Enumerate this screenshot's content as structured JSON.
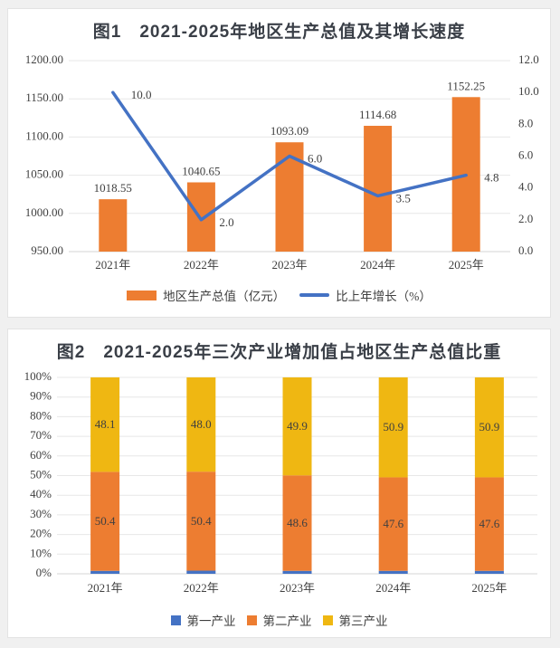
{
  "page": {
    "background": "#f0f0f0",
    "card_background": "#ffffff",
    "card_border": "#e3e3e3"
  },
  "colors": {
    "bar_orange": "#ED7D31",
    "line_blue": "#4472C4",
    "gold": "#EFB712",
    "axis_text": "#404040",
    "title_text": "#3a3f47",
    "grid": "#e7e7e7",
    "axis_line": "#d5d5d5"
  },
  "chart_data": [
    {
      "type": "combo-bar-line",
      "title": "图1　2021-2025年地区生产总值及其增长速度",
      "categories": [
        "2021年",
        "2022年",
        "2023年",
        "2024年",
        "2025年"
      ],
      "series": [
        {
          "name": "地区生产总值（亿元）",
          "chart_type": "bar",
          "axis": "left",
          "color": "#ED7D31",
          "values": [
            1018.55,
            1040.65,
            1093.09,
            1114.68,
            1152.25
          ],
          "labels": [
            "1018.55",
            "1040.65",
            "1093.09",
            "1114.68",
            "1152.25"
          ]
        },
        {
          "name": "比上年增长（%）",
          "chart_type": "line",
          "axis": "right",
          "color": "#4472C4",
          "values": [
            10.0,
            2.0,
            6.0,
            3.5,
            4.8
          ],
          "labels": [
            "10.0",
            "2.0",
            "6.0",
            "3.5",
            "4.8"
          ]
        }
      ],
      "left_axis": {
        "min": 950,
        "max": 1200,
        "ticks": [
          "950.00",
          "1000.00",
          "1050.00",
          "1100.00",
          "1150.00",
          "1200.00"
        ]
      },
      "right_axis": {
        "min": 0,
        "max": 12,
        "ticks": [
          "0.0",
          "2.0",
          "4.0",
          "6.0",
          "8.0",
          "10.0",
          "12.0"
        ]
      },
      "grid": true,
      "legend_position": "bottom"
    },
    {
      "type": "stacked-bar-percent",
      "title": "图2　2021-2025年三次产业增加值占地区生产总值比重",
      "categories": [
        "2021年",
        "2022年",
        "2023年",
        "2024年",
        "2025年"
      ],
      "series": [
        {
          "name": "第一产业",
          "color": "#4472C4",
          "values": [
            1.5,
            1.6,
            1.5,
            1.5,
            1.5
          ],
          "labels": null
        },
        {
          "name": "第二产业",
          "color": "#ED7D31",
          "values": [
            50.4,
            50.4,
            48.6,
            47.6,
            47.6
          ],
          "labels": [
            "50.4",
            "50.4",
            "48.6",
            "47.6",
            "47.6"
          ]
        },
        {
          "name": "第三产业",
          "color": "#EFB712",
          "values": [
            48.1,
            48.0,
            49.9,
            50.9,
            50.9
          ],
          "labels": [
            "48.1",
            "48.0",
            "49.9",
            "50.9",
            "50.9"
          ]
        }
      ],
      "y_axis": {
        "min": 0,
        "max": 100,
        "ticks": [
          "0%",
          "10%",
          "20%",
          "30%",
          "40%",
          "50%",
          "60%",
          "70%",
          "80%",
          "90%",
          "100%"
        ]
      },
      "grid": true,
      "legend_position": "bottom"
    }
  ]
}
